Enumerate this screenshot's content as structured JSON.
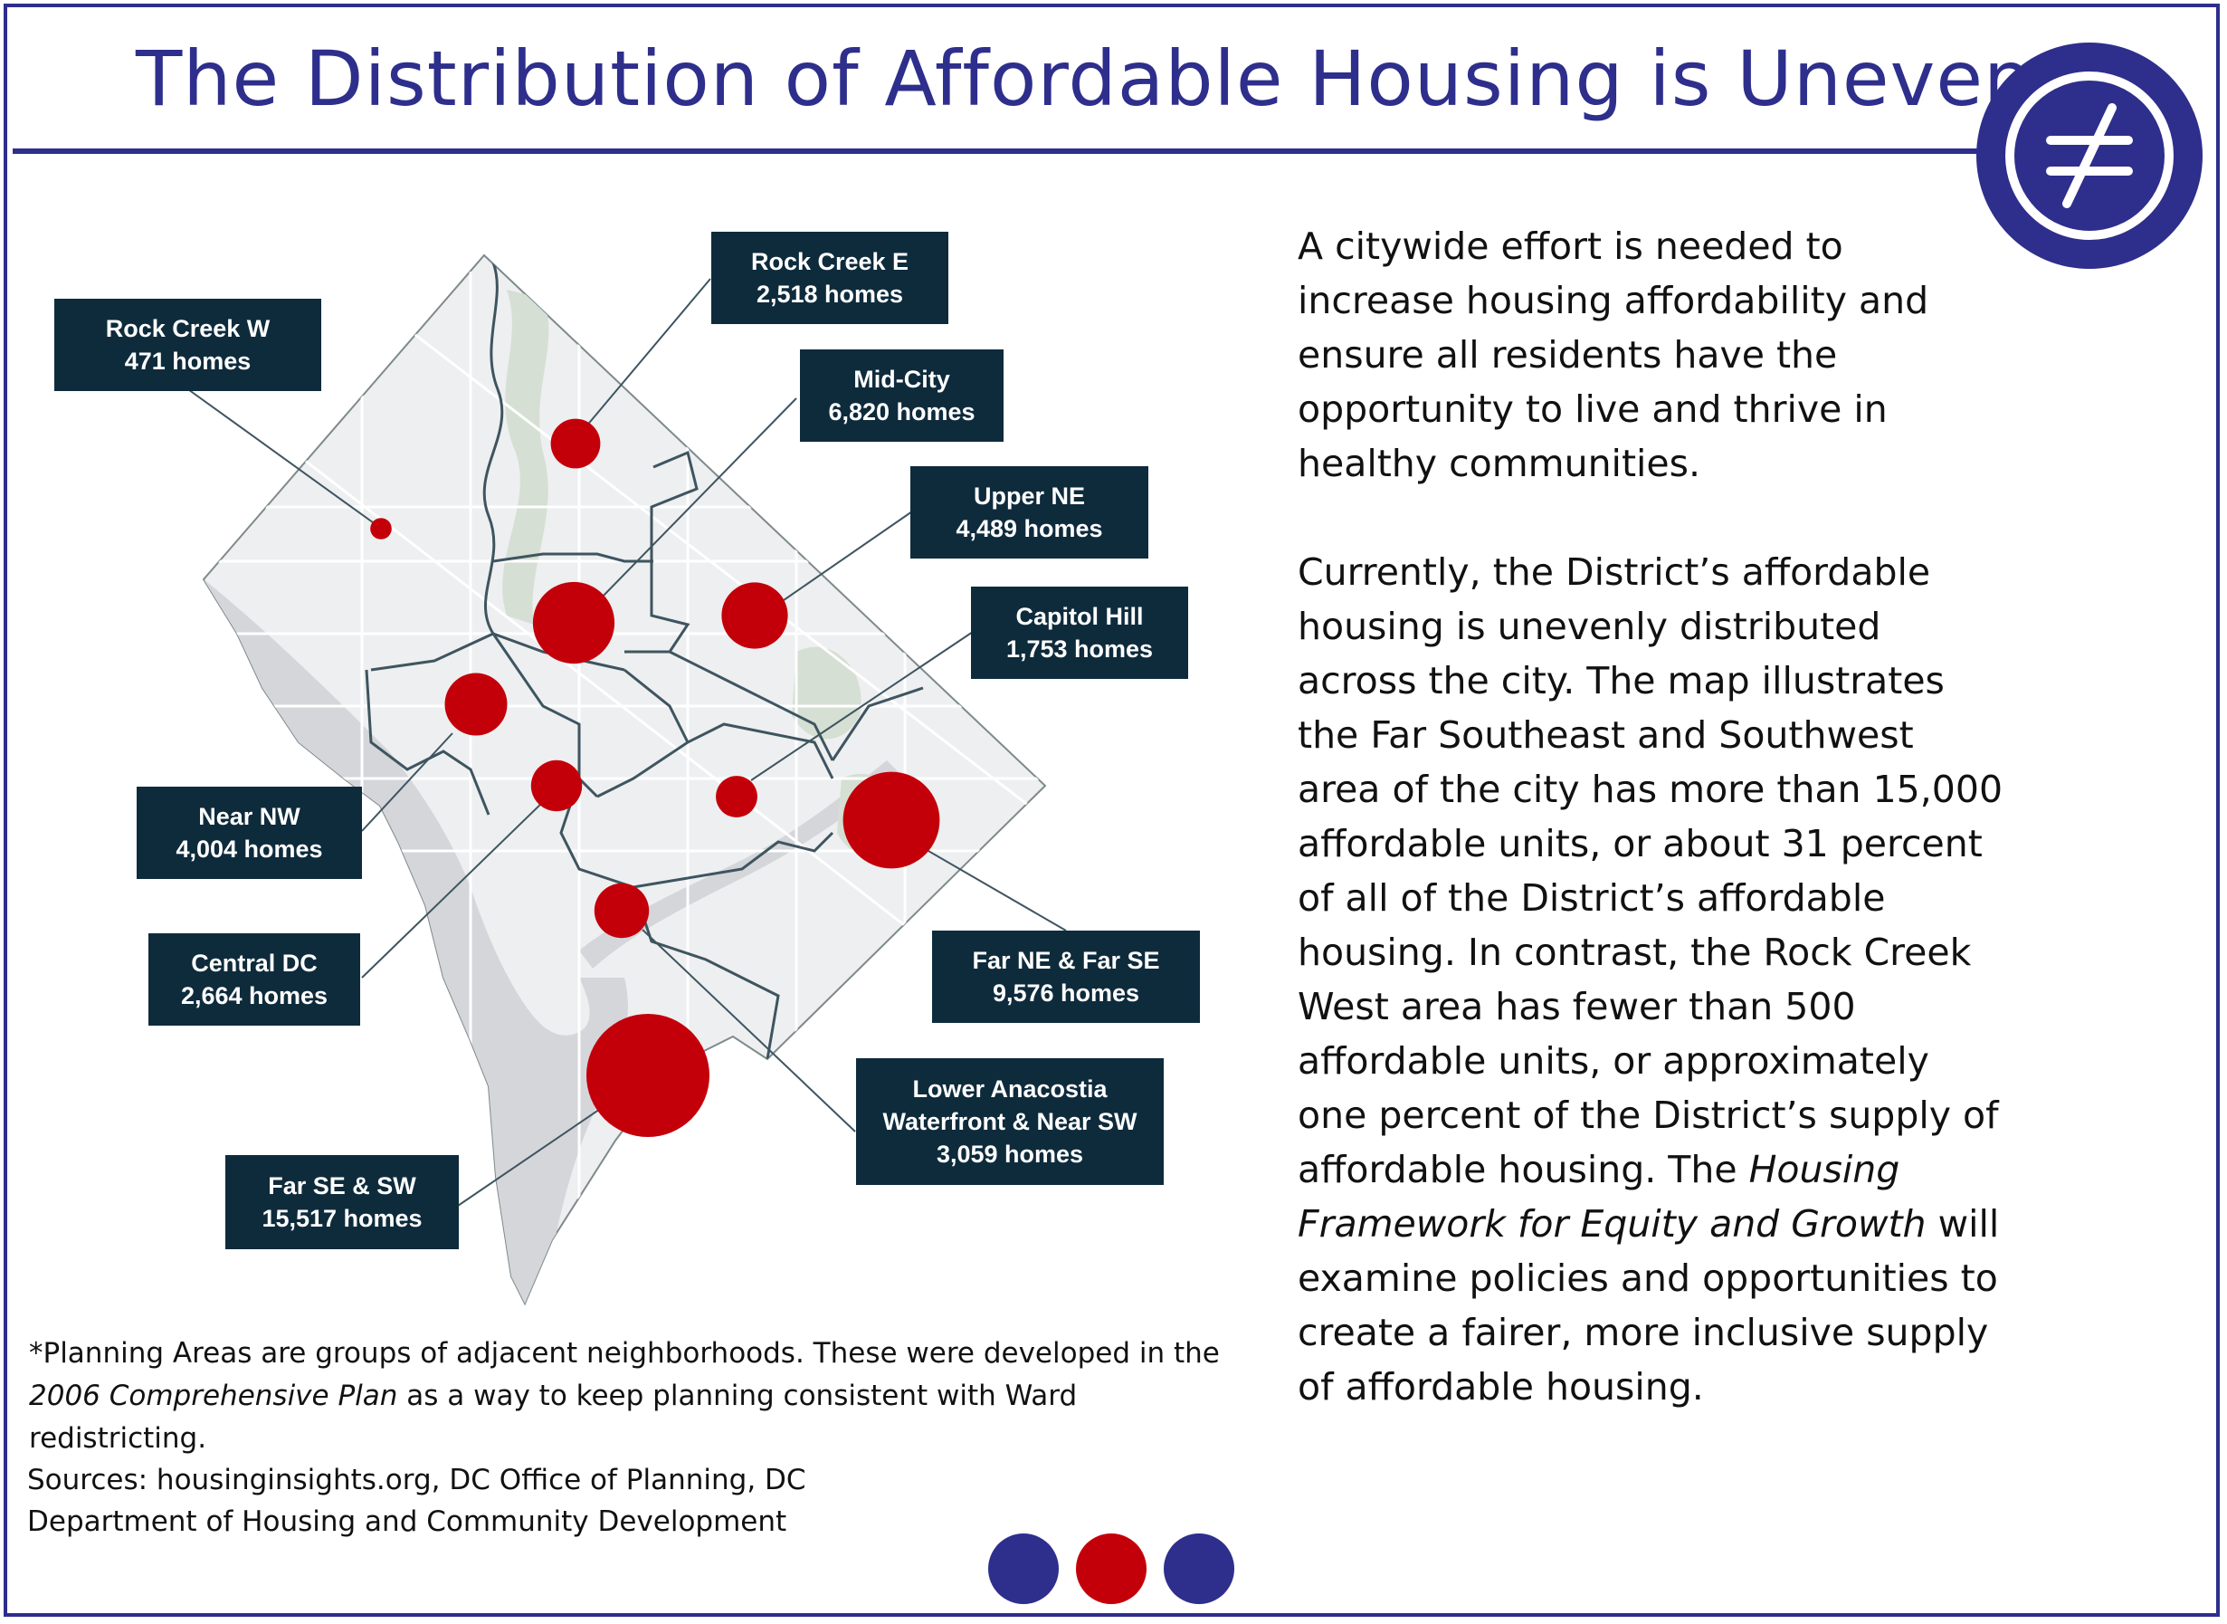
{
  "title": "The Distribution of Affordable Housing is Uneven",
  "logo": {
    "icon": "not-equal-icon",
    "color": "#2e2e8c"
  },
  "colors": {
    "brand": "#2e2e8c",
    "marker": "#c3000a",
    "label_bg": "#0e2b3c"
  },
  "map": {
    "areas": [
      {
        "name": "Rock Creek E",
        "homes": "2,518 homes",
        "value": 2518
      },
      {
        "name": "Rock Creek W",
        "homes": "471 homes",
        "value": 471
      },
      {
        "name": "Mid-City",
        "homes": "6,820 homes",
        "value": 6820
      },
      {
        "name": "Upper NE",
        "homes": "4,489 homes",
        "value": 4489
      },
      {
        "name": "Capitol Hill",
        "homes": "1,753 homes",
        "value": 1753
      },
      {
        "name": "Near NW",
        "homes": "4,004 homes",
        "value": 4004
      },
      {
        "name": "Central DC",
        "homes": "2,664 homes",
        "value": 2664
      },
      {
        "name": "Far NE & Far SE",
        "homes": "9,576 homes",
        "value": 9576
      },
      {
        "name_line1": "Lower Anacostia",
        "name_line2": "Waterfront & Near SW",
        "homes": "3,059 homes",
        "value": 3059
      },
      {
        "name": "Far SE & SW",
        "homes": "15,517 homes",
        "value": 15517
      }
    ]
  },
  "body": {
    "p1": "A citywide effort is needed to increase housing affordability and ensure all residents have the opportunity to live and thrive in healthy communities.",
    "p2_a": "Currently, the District’s affordable housing is unevenly distributed across the city. The map illustrates the Far Southeast and Southwest area of the city has more than 15,000 affordable units, or about 31 percent of all of the District’s affordable housing. In contrast, the Rock Creek West area has fewer than 500 affordable units, or approximately one percent of the District’s supply of affordable housing. The ",
    "p2_em": "Housing Framework for Equity and Growth",
    "p2_b": " will examine policies and opportunities to create a fairer, more inclusive supply of affordable housing."
  },
  "footnote": {
    "a": "*Planning Areas are groups of adjacent neighborhoods. These were developed in the ",
    "em": "2006 Comprehensive Plan",
    "b": " as a way to keep planning consistent with Ward redistricting."
  },
  "sources": {
    "line1": "Sources: housinginsights.org, DC Office of Planning, DC",
    "line2": "Department of Housing and Community Development"
  },
  "footer_dots": [
    "#2e2e8c",
    "#c3000a",
    "#2e2e8c"
  ]
}
